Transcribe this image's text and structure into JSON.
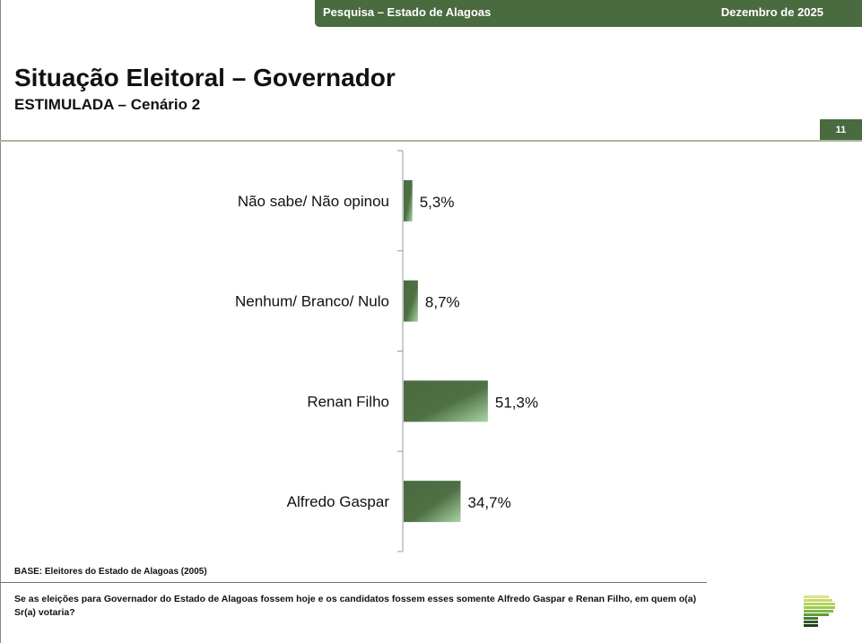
{
  "header": {
    "survey": "Pesquisa – Estado de Alagoas",
    "date": "Dezembro de 2025",
    "page_number": "11"
  },
  "title": "Situação Eleitoral – Governador",
  "subtitle": "ESTIMULADA – Cenário 2",
  "colors": {
    "brand_green": "#4a6a40",
    "bar_light": "#9ccc9a"
  },
  "chart_data": {
    "type": "bar",
    "orientation": "horizontal",
    "categories": [
      "Não sabe/ Não opinou",
      "Nenhum/ Branco/ Nulo",
      "Renan Filho",
      "Alfredo Gaspar"
    ],
    "values": [
      5.3,
      8.7,
      51.3,
      34.7
    ],
    "value_labels": [
      "5,3%",
      "8,7%",
      "51,3%",
      "34,7%"
    ],
    "unit": "%",
    "grid": false
  },
  "footer": {
    "base": "BASE: Eleitores do Estado de Alagoas (2005)",
    "question": "Se as eleições para Governador do Estado de Alagoas fossem hoje e os candidatos fossem esses somente Alfredo Gaspar e Renan Filho, em quem o(a) Sr(a) votaria?"
  },
  "logo_colors": [
    "#d8e48a",
    "#c6dc6a",
    "#b4d45a",
    "#9ccc50",
    "#80b848",
    "#5e9a3c",
    "#4a7a34",
    "#2e5a28",
    "#1e4020"
  ]
}
